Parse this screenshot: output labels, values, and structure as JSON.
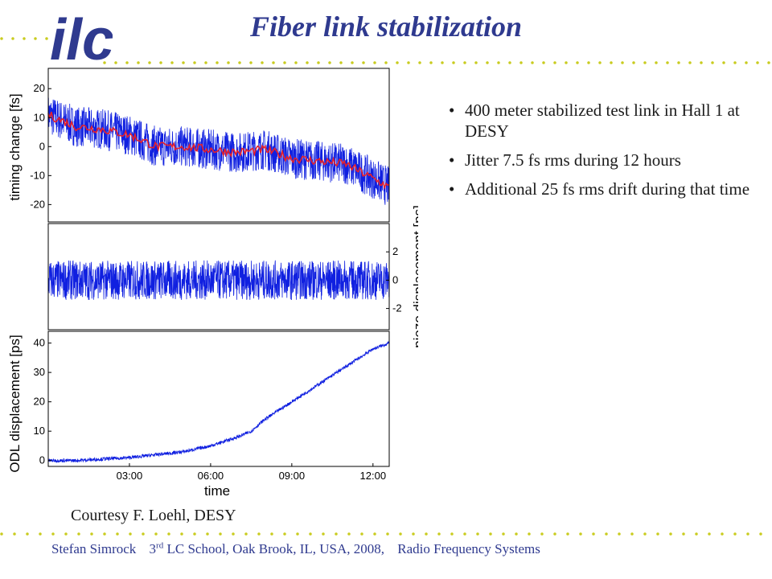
{
  "slide": {
    "title": "Fiber link stabilization",
    "logo_text": "ilc",
    "bullets": [
      "400 meter stabilized test link in Hall 1 at DESY",
      "Jitter 7.5 fs rms during 12 hours",
      "Additional 25 fs rms drift during that time"
    ],
    "credit": "Courtesy F. Loehl, DESY",
    "footer": {
      "author": "Stefan Simrock",
      "event_pre": "3",
      "event_sup": "rd",
      "event_post": " LC  School, Oak Brook, IL, USA, 2008,",
      "topic": "Radio Frequency Systems"
    }
  },
  "colors": {
    "title": "#2f3a8f",
    "dots": "#c9cc1f",
    "logo": "#2f3a8f",
    "trace": "#1020e0",
    "mean": "#e8202a"
  },
  "chart_data": [
    {
      "type": "line",
      "ylabel": "timing change [fs]",
      "ylim": [
        -26,
        27
      ],
      "yticks": [
        20,
        10,
        0,
        -10,
        -20
      ],
      "series": [
        {
          "x": [
            0,
            1,
            2,
            3,
            4,
            5,
            6,
            7,
            8,
            9,
            10,
            11,
            12,
            12.6
          ],
          "values": [
            11,
            7,
            6,
            4,
            0,
            0,
            -1,
            -2,
            -1,
            -4,
            -5,
            -6,
            -11,
            -14
          ]
        }
      ]
    },
    {
      "type": "line",
      "ylabel": "piezo displacement [ps]",
      "ylim": [
        -3.5,
        4
      ],
      "yticks": [
        2,
        0,
        -2
      ],
      "series": [
        {
          "x": [
            0,
            12.6
          ],
          "values": [
            0,
            0
          ]
        }
      ]
    },
    {
      "type": "line",
      "ylabel": "ODL displacement [ps]",
      "xlabel": "time",
      "ylim": [
        -2,
        44
      ],
      "yticks": [
        40,
        30,
        20,
        10,
        0
      ],
      "xticks": [
        "03:00",
        "06:00",
        "09:00",
        "12:00"
      ],
      "series": [
        {
          "x": [
            0,
            1,
            2,
            3,
            4,
            5,
            6,
            7,
            7.5,
            8,
            9,
            10,
            11,
            12,
            12.6
          ],
          "values": [
            0,
            0,
            0.5,
            1,
            2,
            3,
            5,
            8,
            10,
            14,
            20,
            26,
            32,
            38,
            40
          ]
        }
      ]
    }
  ]
}
